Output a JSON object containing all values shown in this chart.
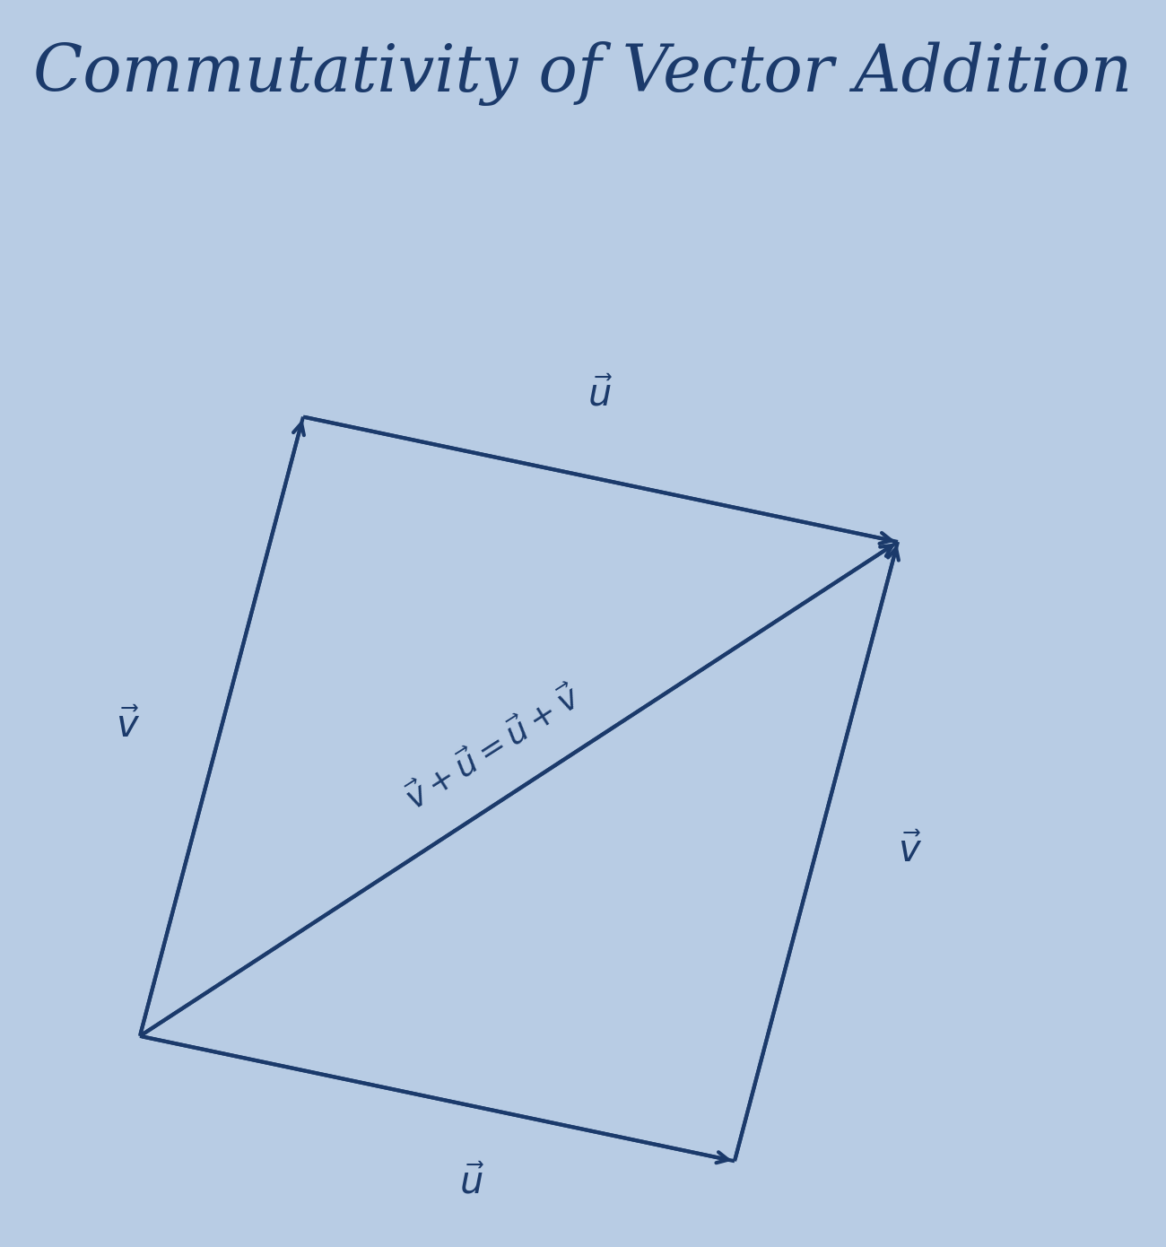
{
  "title": "Commutativity of Vector Addition",
  "title_color": "#1b3a6b",
  "title_fontsize": 52,
  "bg_color": "#b8cce4",
  "vector_color": "#1b3a6b",
  "line_width": 3.0,
  "label_fontsize": 30,
  "formula_fontsize": 26,
  "O": [
    0.12,
    0.13
  ],
  "U": [
    0.51,
    -0.105
  ],
  "V": [
    0.14,
    0.52
  ]
}
